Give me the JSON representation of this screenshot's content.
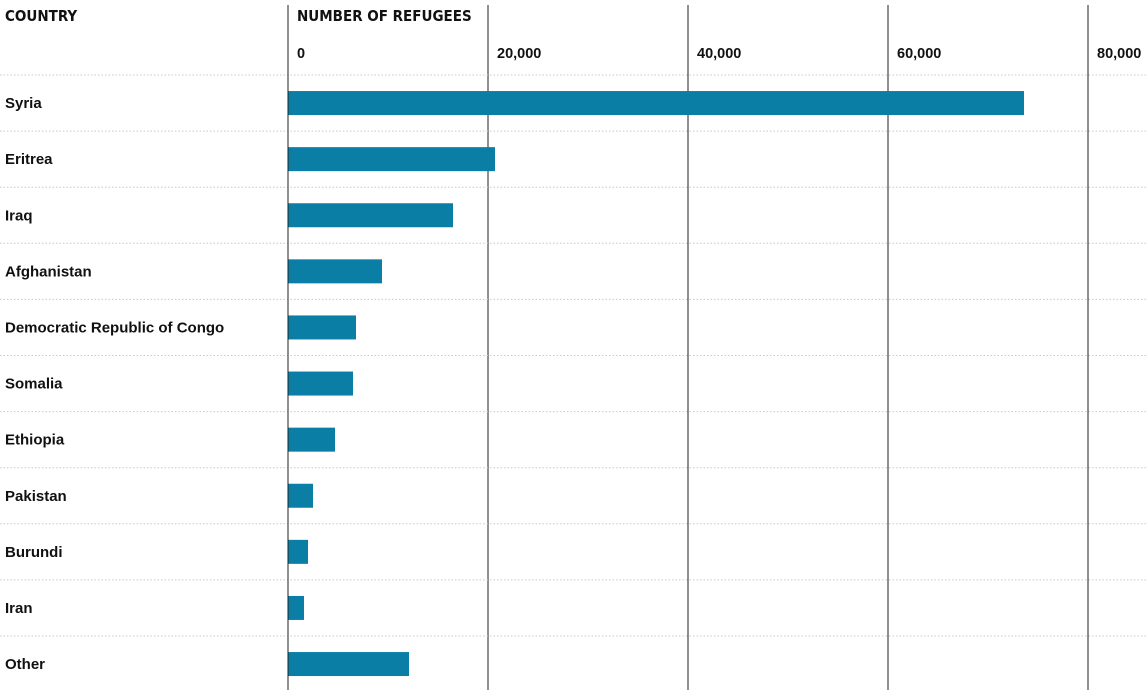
{
  "chart_data": {
    "type": "bar",
    "orientation": "horizontal",
    "column_header": "COUNTRY",
    "value_header": "NUMBER OF REFUGEES",
    "xlim": [
      0,
      80000
    ],
    "ticks": [
      0,
      20000,
      40000,
      60000,
      80000
    ],
    "tick_labels": [
      "0",
      "20,000",
      "40,000",
      "60,000",
      "80,000"
    ],
    "grid": true,
    "categories": [
      "Syria",
      "Eritrea",
      "Iraq",
      "Afghanistan",
      "Democratic Republic of Congo",
      "Somalia",
      "Ethiopia",
      "Pakistan",
      "Burundi",
      "Iran",
      "Other"
    ],
    "values": [
      73600,
      20700,
      16500,
      9400,
      6800,
      6500,
      4700,
      2500,
      2000,
      1600,
      12100
    ],
    "bar_color": "#0a7ea4"
  }
}
